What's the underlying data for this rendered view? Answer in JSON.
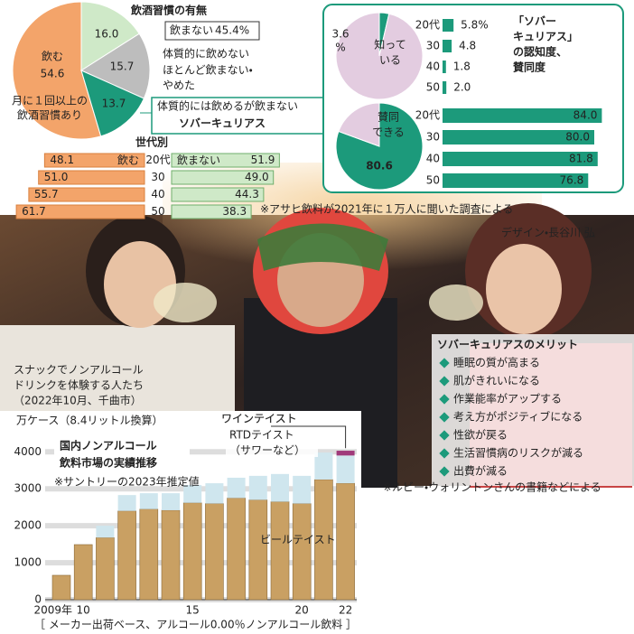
{
  "chart_data": [
    {
      "type": "pie",
      "title": "飲酒習慣の有無",
      "categories": [
        [
          "飲む"
        ],
        [
          "体質的に飲めない"
        ],
        [
          "ほとんど飲まない・",
          "やめた"
        ],
        [
          "体質的には飲めるが飲まない"
        ]
      ],
      "values": [
        54.6,
        16.0,
        15.7,
        13.7
      ],
      "value_labels": [
        "54.6",
        "16.0",
        "15.7",
        "13.7"
      ],
      "colors": [
        "#f3a46a",
        "#cfe9c8",
        "#bdbdbd",
        "#1c9a7b"
      ],
      "note_lines": [
        "月に１回以上の",
        "飲酒習慣あり"
      ],
      "group_name": "飲まない",
      "group_total": "45.4%",
      "highlight": "ソバーキュリアス"
    },
    {
      "type": "diverging_bar",
      "title": "世代別",
      "categories": [
        "20代",
        "30",
        "40",
        "50"
      ],
      "series": [
        {
          "name": "飲む",
          "color": "#f3a46a",
          "values": [
            48.1,
            51.0,
            55.7,
            61.7
          ],
          "value_labels": [
            "48.1",
            "51.0",
            "55.7",
            "61.7"
          ]
        },
        {
          "name": "飲まない",
          "color": "#cfe9c8",
          "values": [
            51.9,
            49.0,
            44.3,
            38.3
          ],
          "value_labels": [
            "51.9",
            "49.0",
            "44.3",
            "38.3"
          ]
        }
      ]
    },
    {
      "type": "pie",
      "categories": [
        [
          "知って",
          "いる"
        ],
        null
      ],
      "values": [
        3.6,
        96.4
      ],
      "value_labels": [
        [
          "3.6",
          "%"
        ],
        null
      ],
      "colors": [
        "#1c9a7b",
        "#e3cce0"
      ]
    },
    {
      "type": "bar",
      "orientation": "horizontal",
      "categories": [
        "20代",
        "30",
        "40",
        "50"
      ],
      "values": [
        5.8,
        4.8,
        1.8,
        2.0
      ],
      "value_labels": [
        "5.8%",
        "4.8",
        "1.8",
        "2.0"
      ],
      "color": "#1c9a7b"
    },
    {
      "type": "pie",
      "categories": [
        [
          "賛同",
          "できる"
        ],
        null
      ],
      "values": [
        80.6,
        19.4
      ],
      "value_labels": [
        "80.6",
        null
      ],
      "colors": [
        "#1c9a7b",
        "#e3cce0"
      ]
    },
    {
      "type": "bar",
      "orientation": "horizontal",
      "categories": [
        "20代",
        "30",
        "40",
        "50"
      ],
      "values": [
        84.0,
        80.0,
        81.8,
        76.8
      ],
      "value_labels": [
        "84.0",
        "80.0",
        "81.8",
        "76.8"
      ],
      "color": "#1c9a7b"
    },
    {
      "type": "stacked_bar",
      "title_lines": [
        "国内ノンアルコール",
        "飲料市場の実績推移"
      ],
      "note": "※サントリーの2023年推定値",
      "y_label": "万ケース（8.4リットル換算）",
      "footnote": "［ メーカー出荷ベース、アルコール0.00％ノンアルコール飲料 ］",
      "categories": [
        "2009年",
        "10",
        null,
        null,
        null,
        null,
        "15",
        null,
        null,
        null,
        null,
        "20",
        null,
        "22"
      ],
      "series": [
        {
          "name": "ビールテイスト",
          "color": "#c9a063",
          "values": [
            660,
            1490,
            1680,
            2400,
            2450,
            2420,
            2620,
            2600,
            2750,
            2700,
            2650,
            2600,
            3250,
            3150
          ]
        },
        {
          "name": "RTDテイスト",
          "name_note": "（サワーなど）",
          "color": "#cfe6ee",
          "values": [
            0,
            0,
            320,
            430,
            430,
            460,
            480,
            550,
            550,
            650,
            750,
            750,
            730,
            750
          ]
        },
        {
          "name": "ワインテイスト",
          "color": "#a03a7a",
          "values": [
            0,
            0,
            0,
            0,
            0,
            0,
            0,
            0,
            0,
            0,
            0,
            0,
            0,
            130
          ]
        }
      ],
      "ylim": [
        0,
        4300
      ],
      "yticks": [
        0,
        1000,
        2000,
        3000,
        4000
      ],
      "grid": true
    }
  ],
  "survey_panel": {
    "title_lines": [
      "「ソバー",
      "キュリアス」",
      "の認知度、",
      "賛同度"
    ],
    "source": "※アサヒ飲料が2021年に１万人に聞いた調査による"
  },
  "photo": {
    "caption_lines": [
      "スナックでノンアルコール",
      "ドリンクを体験する人たち",
      "（2022年10月、千曲市）"
    ],
    "credit": "デザイン・長谷川 弘"
  },
  "merits": {
    "title": "ソバーキュリアスのメリット",
    "items": [
      "睡眠の質が高まる",
      "肌がきれいになる",
      "作業能率がアップする",
      "考え方がポジティブになる",
      "性欲が戻る",
      "生活習慣病のリスクが減る",
      "出費が減る"
    ],
    "source": "※ルビー・ウォリントンさんの書籍などによる"
  }
}
